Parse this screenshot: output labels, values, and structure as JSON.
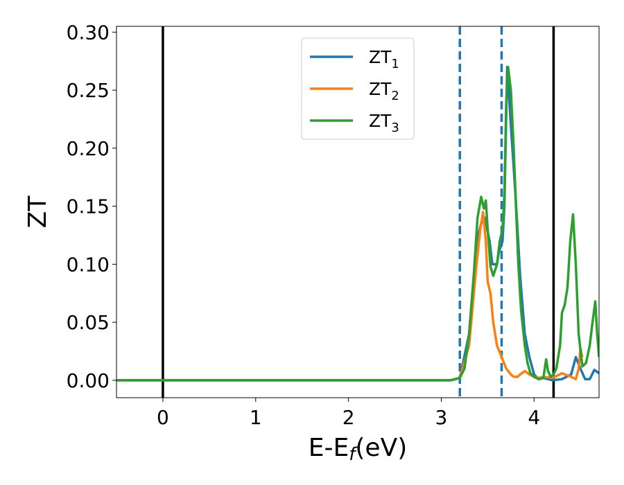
{
  "chart_data": {
    "type": "line",
    "xlabel": "E-E",
    "xlabel_sub": "f",
    "xlabel_unit": "(eV)",
    "ylabel": "ZT",
    "xlim": [
      -0.5,
      4.7
    ],
    "ylim": [
      -0.015,
      0.305
    ],
    "x_ticks": [
      0,
      1,
      2,
      3,
      4
    ],
    "x_tick_labels": [
      "0",
      "1",
      "2",
      "3",
      "4"
    ],
    "y_ticks": [
      0.0,
      0.05,
      0.1,
      0.15,
      0.2,
      0.25,
      0.3
    ],
    "y_tick_labels": [
      "0.00",
      "0.05",
      "0.10",
      "0.15",
      "0.20",
      "0.25",
      "0.30"
    ],
    "grid": false,
    "legend_position": "top-center",
    "vlines": [
      {
        "x": 0.0,
        "color": "#000000",
        "style": "solid"
      },
      {
        "x": 4.21,
        "color": "#000000",
        "style": "solid"
      },
      {
        "x": 3.2,
        "color": "#1f77b4",
        "style": "dashed"
      },
      {
        "x": 3.65,
        "color": "#1f77b4",
        "style": "dashed"
      }
    ],
    "series": [
      {
        "name": "ZT",
        "name_sub": "1",
        "color": "#1f77b4",
        "x": [
          -0.5,
          3.1,
          3.2,
          3.3,
          3.38,
          3.43,
          3.47,
          3.52,
          3.55,
          3.6,
          3.62,
          3.66,
          3.68,
          3.71,
          3.75,
          3.8,
          3.85,
          3.9,
          3.95,
          4.0,
          4.05,
          4.1,
          4.15,
          4.2,
          4.3,
          4.4,
          4.45,
          4.5,
          4.55,
          4.6,
          4.65,
          4.7
        ],
        "y": [
          0.0,
          0.0,
          0.002,
          0.04,
          0.12,
          0.135,
          0.14,
          0.12,
          0.1,
          0.1,
          0.11,
          0.12,
          0.15,
          0.27,
          0.22,
          0.16,
          0.09,
          0.04,
          0.02,
          0.005,
          0.001,
          0.002,
          0.001,
          0.0,
          0.001,
          0.005,
          0.02,
          0.01,
          0.001,
          0.001,
          0.009,
          0.006
        ]
      },
      {
        "name": "ZT",
        "name_sub": "2",
        "color": "#ff7f0e",
        "x": [
          -0.5,
          3.1,
          3.2,
          3.3,
          3.38,
          3.42,
          3.45,
          3.48,
          3.5,
          3.53,
          3.56,
          3.6,
          3.65,
          3.7,
          3.75,
          3.78,
          3.82,
          3.85,
          3.9,
          3.95,
          4.0,
          4.05,
          4.1,
          4.2,
          4.3,
          4.4,
          4.45,
          4.48,
          4.5,
          4.52
        ],
        "y": [
          0.0,
          0.0,
          0.002,
          0.03,
          0.1,
          0.13,
          0.145,
          0.12,
          0.085,
          0.075,
          0.05,
          0.03,
          0.02,
          0.01,
          0.005,
          0.003,
          0.003,
          0.005,
          0.008,
          0.005,
          0.003,
          0.002,
          0.003,
          0.002,
          0.006,
          0.003,
          0.001,
          0.01,
          0.027,
          0.02
        ]
      },
      {
        "name": "ZT",
        "name_sub": "3",
        "color": "#2ca02c",
        "x": [
          -0.5,
          3.1,
          3.2,
          3.25,
          3.3,
          3.35,
          3.39,
          3.43,
          3.46,
          3.48,
          3.5,
          3.53,
          3.56,
          3.6,
          3.63,
          3.66,
          3.68,
          3.7,
          3.72,
          3.75,
          3.78,
          3.8,
          3.83,
          3.86,
          3.9,
          3.93,
          3.96,
          4.0,
          4.05,
          4.1,
          4.13,
          4.15,
          4.18,
          4.21,
          4.24,
          4.28,
          4.3,
          4.33,
          4.36,
          4.39,
          4.42,
          4.45,
          4.48,
          4.52,
          4.56,
          4.6,
          4.63,
          4.66,
          4.68,
          4.7
        ],
        "y": [
          0.0,
          0.0,
          0.002,
          0.01,
          0.04,
          0.09,
          0.14,
          0.158,
          0.148,
          0.155,
          0.13,
          0.098,
          0.09,
          0.1,
          0.12,
          0.13,
          0.16,
          0.24,
          0.27,
          0.25,
          0.2,
          0.16,
          0.1,
          0.06,
          0.03,
          0.015,
          0.006,
          0.003,
          0.001,
          0.002,
          0.018,
          0.008,
          0.003,
          0.005,
          0.01,
          0.03,
          0.058,
          0.065,
          0.08,
          0.12,
          0.143,
          0.1,
          0.04,
          0.012,
          0.015,
          0.03,
          0.05,
          0.068,
          0.04,
          0.02
        ]
      }
    ]
  }
}
